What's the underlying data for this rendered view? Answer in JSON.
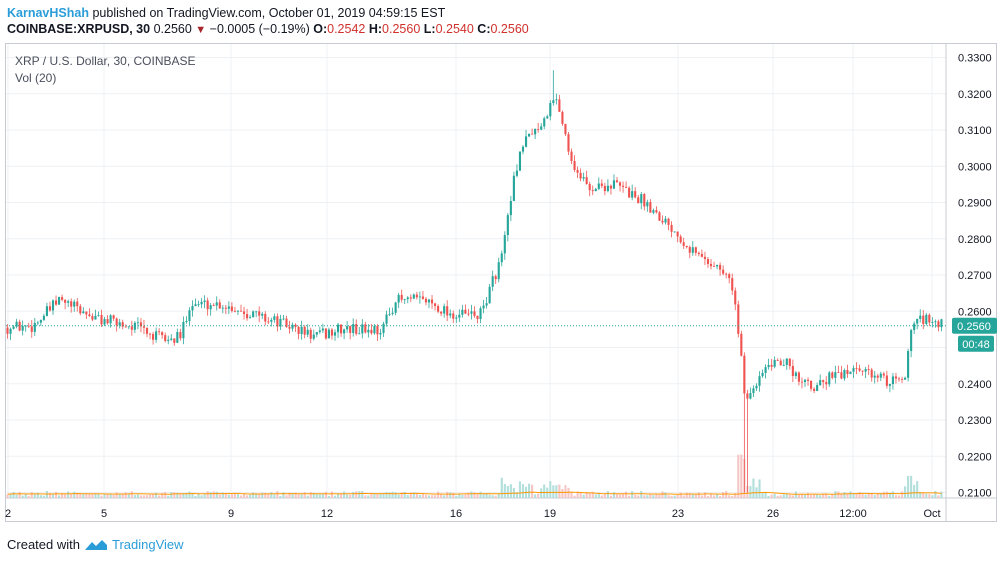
{
  "header": {
    "author": "KarnavHShah",
    "published_text": "published on TradingView.com, October 01, 2019 04:59:15 EST",
    "symbol": "COINBASE:XRPUSD, 30",
    "last": "0.2560",
    "change": "−0.0005 (−0.19%)",
    "o_label": "O:",
    "o_value": "0.2542",
    "h_label": "H:",
    "h_value": "0.2560",
    "l_label": "L:",
    "l_value": "0.2540",
    "c_label": "C:",
    "c_value": "0.2560"
  },
  "legend": {
    "title": "XRP / U.S. Dollar, 30, COINBASE",
    "volume": "Vol (20)"
  },
  "price_tag": "0.2560",
  "countdown_tag": "00:48",
  "footer": {
    "created_with": "Created with",
    "brand": "TradingView"
  },
  "colors": {
    "up": "#26a69a",
    "down": "#ef5350",
    "price_line": "#26a69a",
    "volume_ma": "#ff9800"
  },
  "chart_data": {
    "type": "candlestick",
    "title": "XRP / U.S. Dollar, 30, COINBASE",
    "x_ticks": [
      "2",
      "5",
      "9",
      "12",
      "16",
      "19",
      "23",
      "26",
      "12:00",
      "Oct"
    ],
    "y_ticks": [
      "0.3300",
      "0.3200",
      "0.3100",
      "0.3000",
      "0.2900",
      "0.2800",
      "0.2700",
      "0.2600",
      "0.2500",
      "0.2400",
      "0.2300",
      "0.2200",
      "0.2100"
    ],
    "ylim": [
      0.21,
      0.33
    ],
    "grid": true,
    "last_price": 0.256,
    "price_path": [
      [
        0.0,
        0.2555
      ],
      [
        0.03,
        0.256
      ],
      [
        0.06,
        0.263
      ],
      [
        0.1,
        0.258
      ],
      [
        0.15,
        0.2555
      ],
      [
        0.165,
        0.253
      ],
      [
        0.185,
        0.252
      ],
      [
        0.195,
        0.253
      ],
      [
        0.205,
        0.262
      ],
      [
        0.24,
        0.262
      ],
      [
        0.28,
        0.259
      ],
      [
        0.315,
        0.256
      ],
      [
        0.345,
        0.253
      ],
      [
        0.375,
        0.255
      ],
      [
        0.405,
        0.255
      ],
      [
        0.42,
        0.255
      ],
      [
        0.435,
        0.263
      ],
      [
        0.47,
        0.263
      ],
      [
        0.5,
        0.259
      ],
      [
        0.53,
        0.259
      ],
      [
        0.555,
        0.276
      ],
      [
        0.57,
        0.3
      ],
      [
        0.585,
        0.31
      ],
      [
        0.6,
        0.312
      ],
      [
        0.615,
        0.32
      ],
      [
        0.63,
        0.302
      ],
      [
        0.65,
        0.294
      ],
      [
        0.68,
        0.295
      ],
      [
        0.715,
        0.29
      ],
      [
        0.745,
        0.283
      ],
      [
        0.77,
        0.276
      ],
      [
        0.79,
        0.273
      ],
      [
        0.8,
        0.271
      ],
      [
        0.812,
        0.267
      ],
      [
        0.826,
        0.236
      ],
      [
        0.845,
        0.244
      ],
      [
        0.87,
        0.246
      ],
      [
        0.895,
        0.239
      ],
      [
        0.925,
        0.242
      ],
      [
        0.955,
        0.244
      ],
      [
        0.985,
        0.24
      ],
      [
        1.005,
        0.242
      ],
      [
        1.012,
        0.258
      ],
      [
        1.03,
        0.258
      ],
      [
        1.05,
        0.256
      ]
    ],
    "events": {
      "drop_wick_low": 0.21,
      "drop_position": 0.826,
      "peak_high": 0.3265,
      "peak_position": 0.612
    },
    "volume_spikes": [
      [
        0.56,
        0.45
      ],
      [
        0.58,
        0.3
      ],
      [
        0.605,
        0.35
      ],
      [
        0.62,
        0.3
      ],
      [
        0.826,
        1.0
      ],
      [
        0.835,
        0.4
      ],
      [
        1.01,
        0.5
      ]
    ]
  }
}
